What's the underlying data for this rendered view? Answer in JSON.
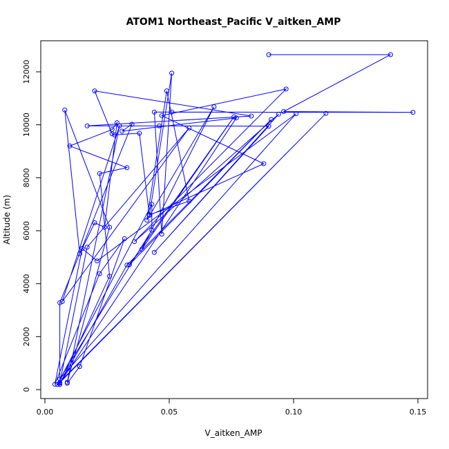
{
  "chart_data": {
    "type": "line",
    "title": "ATOM1 Northeast_Pacific V_aitken_AMP",
    "xlabel": "V_aitken_AMP",
    "ylabel": "Altitude (m)",
    "xlim": [
      0.0,
      0.15
    ],
    "ylim": [
      0,
      12000
    ],
    "xticks": [
      0.0,
      0.05,
      0.1,
      0.15
    ],
    "xtick_labels": [
      "0.00",
      "0.05",
      "0.10",
      "0.15"
    ],
    "yticks": [
      0,
      2000,
      4000,
      6000,
      8000,
      10000,
      12000
    ],
    "ytick_labels": [
      "0",
      "2000",
      "4000",
      "6000",
      "8000",
      "10000",
      "12000"
    ],
    "grid": false,
    "series_color": "#0000ff",
    "series": [
      {
        "points": [
          [
            0.09,
            12650
          ],
          [
            0.139,
            12650
          ],
          [
            0.096,
            10500
          ],
          [
            0.148,
            10470
          ],
          [
            0.051,
            10480
          ],
          [
            0.044,
            10480
          ],
          [
            0.047,
            5870
          ],
          [
            0.051,
            11950
          ],
          [
            0.042,
            6580
          ],
          [
            0.088,
            8530
          ],
          [
            0.047,
            10350
          ],
          [
            0.097,
            11350
          ],
          [
            0.036,
            5590
          ],
          [
            0.094,
            10400
          ],
          [
            0.044,
            5180
          ],
          [
            0.09,
            9950
          ],
          [
            0.046,
            9960
          ],
          [
            0.017,
            9960
          ],
          [
            0.083,
            10330
          ],
          [
            0.02,
            11280
          ],
          [
            0.027,
            9660
          ],
          [
            0.028,
            9620
          ],
          [
            0.038,
            9680
          ],
          [
            0.042,
            6600
          ],
          [
            0.058,
            7120
          ],
          [
            0.049,
            11280
          ],
          [
            0.041,
            6400
          ],
          [
            0.068,
            10680
          ],
          [
            0.039,
            5300
          ],
          [
            0.076,
            10300
          ],
          [
            0.034,
            4720
          ],
          [
            0.091,
            10200
          ],
          [
            0.033,
            4700
          ],
          [
            0.006,
            240
          ],
          [
            0.077,
            10260
          ],
          [
            0.031,
            9760
          ],
          [
            0.035,
            10020
          ],
          [
            0.006,
            3280
          ],
          [
            0.006,
            190
          ],
          [
            0.026,
            4280
          ],
          [
            0.022,
            8160
          ],
          [
            0.033,
            8380
          ],
          [
            0.01,
            9200
          ],
          [
            0.027,
            9820
          ],
          [
            0.029,
            10080
          ],
          [
            0.024,
            6130
          ],
          [
            0.02,
            6300
          ],
          [
            0.014,
            5130
          ],
          [
            0.008,
            10560
          ],
          [
            0.026,
            6130
          ],
          [
            0.009,
            280
          ],
          [
            0.03,
            9960
          ],
          [
            0.007,
            3330
          ],
          [
            0.058,
            9880
          ],
          [
            0.017,
            5380
          ],
          [
            0.006,
            260
          ],
          [
            0.113,
            10430
          ],
          [
            0.005,
            190
          ],
          [
            0.043,
            7000
          ],
          [
            0.043,
            6020
          ],
          [
            0.006,
            400
          ],
          [
            0.101,
            10420
          ],
          [
            0.021,
            4860
          ],
          [
            0.015,
            5330
          ],
          [
            0.004,
            200
          ],
          [
            0.022,
            4380
          ],
          [
            0.032,
            5700
          ],
          [
            0.014,
            870
          ],
          [
            0.009,
            240
          ]
        ]
      }
    ]
  }
}
